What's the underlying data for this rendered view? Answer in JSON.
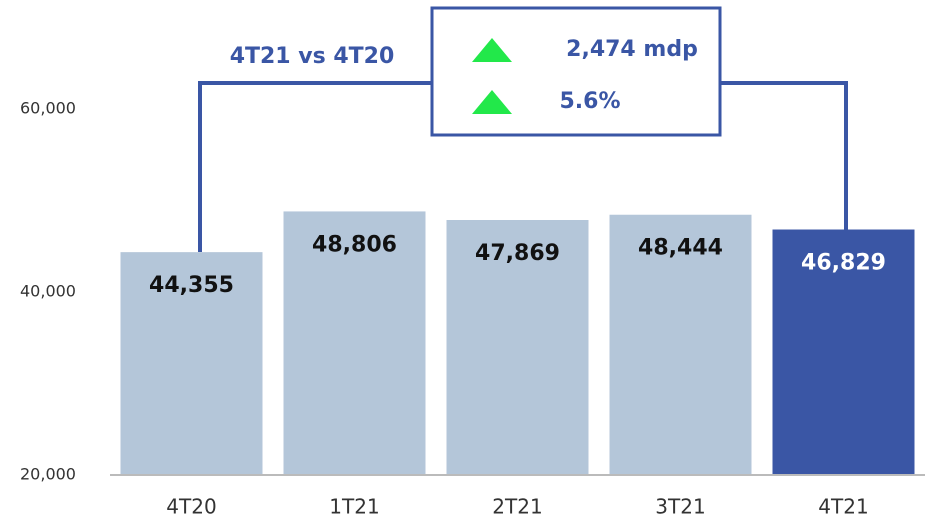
{
  "chart_data": {
    "type": "bar",
    "categories": [
      "4T20",
      "1T21",
      "2T21",
      "3T21",
      "4T21"
    ],
    "values": [
      44355,
      48806,
      47869,
      48444,
      46829
    ],
    "value_labels": [
      "44,355",
      "48,806",
      "47,869",
      "48,444",
      "46,829"
    ],
    "colors": [
      "#b4c6d9",
      "#b4c6d9",
      "#b4c6d9",
      "#b4c6d9",
      "#3a56a5"
    ],
    "label_colors": [
      "#111111",
      "#111111",
      "#111111",
      "#111111",
      "#ffffff"
    ],
    "ylim": [
      20000,
      70000
    ],
    "yticks": [
      {
        "value": 20000,
        "label": "20,000"
      },
      {
        "value": 40000,
        "label": "40,000"
      },
      {
        "value": 60000,
        "label": "60,000"
      }
    ],
    "grid": false,
    "annotations": {
      "comparison": "4T21 vs 4T20",
      "change_amount": "2,474 mdp",
      "change_percent": "5.6%"
    }
  }
}
